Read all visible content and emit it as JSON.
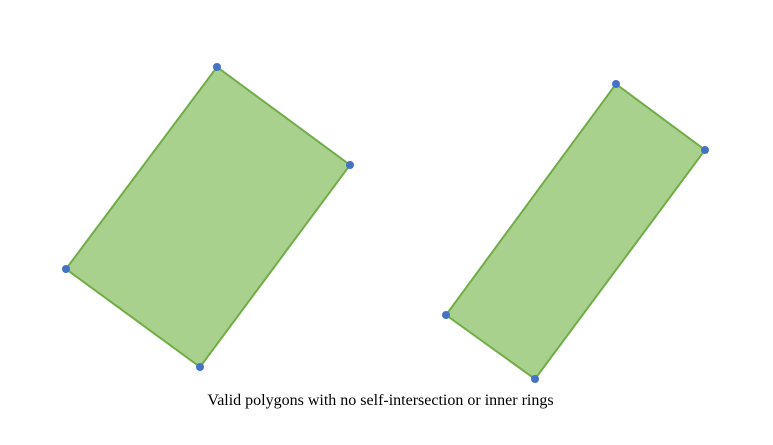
{
  "caption": "Valid polygons with no self-intersection or inner rings",
  "colors": {
    "polygon_fill": "#a9d18e",
    "polygon_stroke": "#70ad47",
    "vertex": "#4472c4",
    "background": "#ffffff"
  },
  "polygons": [
    {
      "name": "polygon-left",
      "vertex_count": 4
    },
    {
      "name": "polygon-right",
      "vertex_count": 4
    }
  ]
}
